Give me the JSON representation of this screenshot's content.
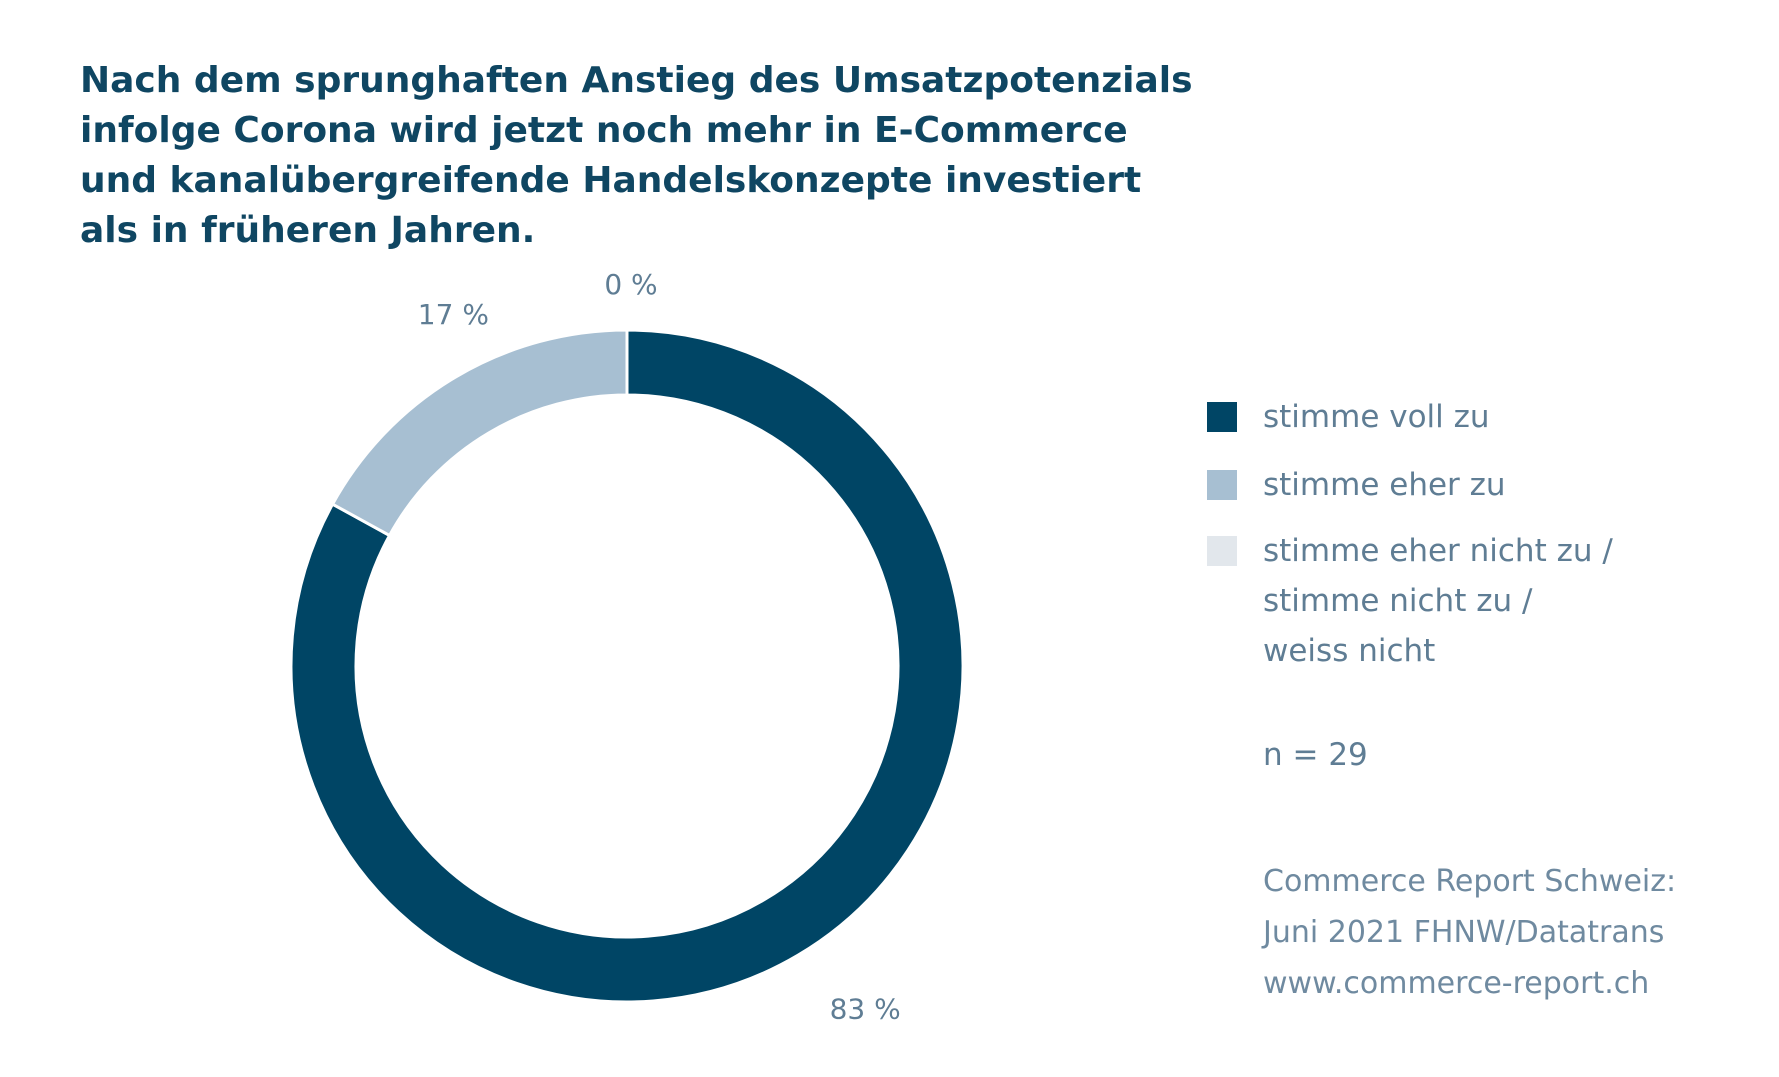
{
  "title_lines": [
    "Nach dem sprunghaften Anstieg des Umsatzpotenzials",
    "infolge Corona wird jetzt noch mehr in E-Commerce",
    "und kanalübergreifende Handelskonzepte investiert",
    "als in früheren Jahren."
  ],
  "colors": {
    "title": "#0f4662",
    "label": "#5f7d94",
    "source": "#6f8aa0",
    "voll": "#004565",
    "eher": "#a7bfd2",
    "nicht": "#e2e7ec"
  },
  "legend": [
    {
      "label_lines": [
        "stimme voll zu"
      ],
      "color": "#004565"
    },
    {
      "label_lines": [
        "stimme eher zu"
      ],
      "color": "#a7bfd2"
    },
    {
      "label_lines": [
        "stimme eher nicht zu /",
        "stimme nicht zu /",
        "weiss nicht"
      ],
      "color": "#e2e7ec"
    }
  ],
  "note": "n = 29",
  "source_lines": [
    "Commerce Report Schweiz:",
    "Juni 2021 FHNW/Datatrans",
    "www.commerce-report.ch"
  ],
  "chart_data": {
    "type": "pie",
    "style": "donut",
    "categories": [
      "stimme voll zu",
      "stimme eher zu",
      "stimme eher nicht zu / stimme nicht zu / weiss nicht"
    ],
    "values": [
      83,
      17,
      0
    ],
    "value_labels": [
      "83 %",
      "17 %",
      "0 %"
    ],
    "unit": "%",
    "n": 29,
    "legend": "right",
    "direction": "clockwise from top"
  }
}
